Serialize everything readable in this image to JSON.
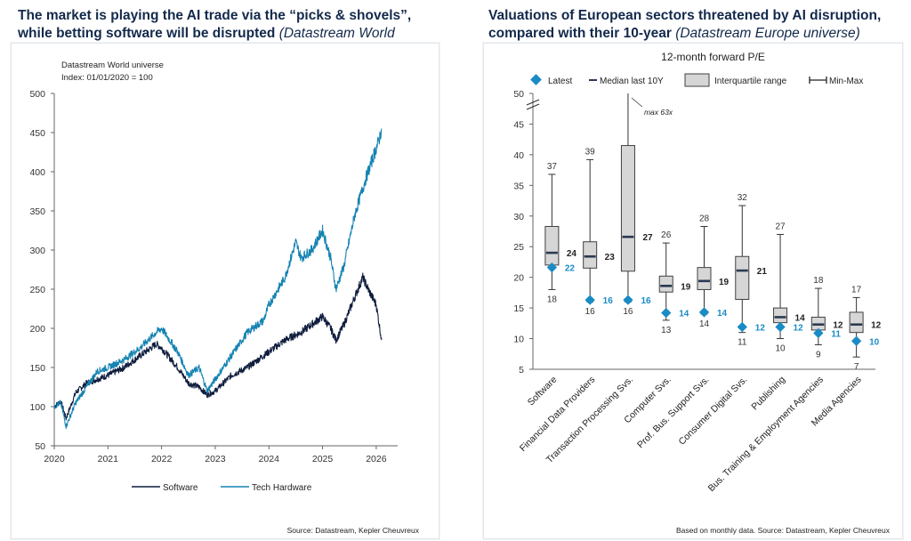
{
  "left": {
    "title_main": "The market is playing the AI trade via the “picks & shovels”, while betting software will be disrupted",
    "title_source": "(Datastream World  universe)",
    "note_line1": "Datastream World universe",
    "note_line2": "Index: 01/01/2020 = 100",
    "source": "Source: Datastream, Kepler Cheuvreux"
  },
  "right": {
    "title_main": "Valuations of European sectors threatened by AI disruption, compared with their 10-year",
    "title_source": "(Datastream Europe universe)",
    "subtitle": "12-month forward P/E",
    "max_note": "max 63x",
    "source": "Based on monthly data. Source: Datastream, Kepler Cheuvreux"
  },
  "colors": {
    "software": "#0f1d3d",
    "tech_hardware": "#1483b2",
    "latest": "#1a8bc4",
    "median": "#2b3a52",
    "box_fill": "#d6d6d6",
    "box_stroke": "#404040",
    "title": "#13294b"
  },
  "chart_data": [
    {
      "type": "line",
      "title": "",
      "xlabel": "",
      "ylabel": "",
      "x_ticks": [
        "2020",
        "2021",
        "2022",
        "2023",
        "2024",
        "2025",
        "2026"
      ],
      "ylim": [
        50,
        500
      ],
      "y_ticks": [
        50,
        100,
        150,
        200,
        250,
        300,
        350,
        400,
        450,
        500
      ],
      "legend_position": "bottom-center",
      "series": [
        {
          "name": "Software",
          "color_key": "software",
          "points": [
            [
              2020.0,
              100
            ],
            [
              2020.12,
              107
            ],
            [
              2020.22,
              85
            ],
            [
              2020.4,
              118
            ],
            [
              2020.6,
              130
            ],
            [
              2020.8,
              135
            ],
            [
              2021.0,
              140
            ],
            [
              2021.3,
              150
            ],
            [
              2021.6,
              165
            ],
            [
              2021.9,
              180
            ],
            [
              2022.0,
              175
            ],
            [
              2022.3,
              150
            ],
            [
              2022.5,
              130
            ],
            [
              2022.7,
              125
            ],
            [
              2022.85,
              115
            ],
            [
              2023.0,
              120
            ],
            [
              2023.3,
              140
            ],
            [
              2023.6,
              150
            ],
            [
              2023.9,
              165
            ],
            [
              2024.0,
              170
            ],
            [
              2024.3,
              185
            ],
            [
              2024.6,
              195
            ],
            [
              2024.9,
              210
            ],
            [
              2025.0,
              215
            ],
            [
              2025.15,
              200
            ],
            [
              2025.25,
              185
            ],
            [
              2025.4,
              205
            ],
            [
              2025.6,
              240
            ],
            [
              2025.75,
              265
            ],
            [
              2025.85,
              250
            ],
            [
              2026.0,
              230
            ],
            [
              2026.1,
              185
            ]
          ]
        },
        {
          "name": "Tech Hardware",
          "color_key": "tech_hardware",
          "points": [
            [
              2020.0,
              100
            ],
            [
              2020.12,
              105
            ],
            [
              2020.22,
              75
            ],
            [
              2020.4,
              105
            ],
            [
              2020.6,
              125
            ],
            [
              2020.8,
              145
            ],
            [
              2021.0,
              150
            ],
            [
              2021.3,
              160
            ],
            [
              2021.6,
              175
            ],
            [
              2021.9,
              195
            ],
            [
              2022.0,
              200
            ],
            [
              2022.3,
              170
            ],
            [
              2022.5,
              140
            ],
            [
              2022.7,
              150
            ],
            [
              2022.85,
              120
            ],
            [
              2023.0,
              135
            ],
            [
              2023.3,
              165
            ],
            [
              2023.6,
              195
            ],
            [
              2023.9,
              210
            ],
            [
              2024.0,
              230
            ],
            [
              2024.3,
              265
            ],
            [
              2024.5,
              310
            ],
            [
              2024.6,
              290
            ],
            [
              2024.8,
              300
            ],
            [
              2025.0,
              325
            ],
            [
              2025.15,
              290
            ],
            [
              2025.25,
              250
            ],
            [
              2025.4,
              280
            ],
            [
              2025.6,
              345
            ],
            [
              2025.8,
              390
            ],
            [
              2025.95,
              420
            ],
            [
              2026.05,
              440
            ],
            [
              2026.1,
              455
            ]
          ]
        }
      ]
    },
    {
      "type": "box",
      "title": "12-month forward P/E",
      "ylim": [
        5,
        50
      ],
      "y_ticks": [
        5,
        10,
        15,
        20,
        25,
        30,
        35,
        40,
        45,
        50
      ],
      "legend": [
        "Latest",
        "Median last 10Y",
        "Interquartile range",
        "Min-Max"
      ],
      "legend_position": "top",
      "categories": [
        "Software",
        "Financial Data Providers",
        "Transaction Processing Svs.",
        "Computer Svs.",
        "Prof. Bus. Support Svs.",
        "Consumer Digital Svs.",
        "Publishing",
        "Bus. Training & Employment Agencies",
        "Media Agencies"
      ],
      "min": [
        18,
        16,
        16,
        13,
        14,
        11,
        10,
        9,
        7
      ],
      "q1": [
        22,
        21.5,
        21,
        17.6,
        18,
        16.4,
        12.6,
        11.4,
        11
      ],
      "median": [
        24,
        23.4,
        26.6,
        18.6,
        19.4,
        21.1,
        13.5,
        12.3,
        12.3
      ],
      "q3": [
        28.3,
        25.8,
        41.5,
        20.2,
        21.6,
        23.4,
        15,
        13.5,
        14.3
      ],
      "max": [
        36.8,
        39.2,
        63,
        25.6,
        28.3,
        31.7,
        27,
        18.2,
        16.7
      ],
      "latest": [
        21.6,
        16.3,
        16.3,
        14.2,
        14.3,
        11.9,
        11.9,
        10.9,
        9.6
      ],
      "min_labels": [
        "18",
        "16",
        "16",
        "13",
        "14",
        "11",
        "10",
        "9",
        "7"
      ],
      "max_labels": [
        "37",
        "39",
        "",
        "26",
        "28",
        "32",
        "27",
        "18",
        "17"
      ],
      "median_labels": [
        "24",
        "23",
        "27",
        "19",
        "19",
        "21",
        "14",
        "12",
        "12"
      ],
      "latest_labels": [
        "22",
        "16",
        "16",
        "14",
        "14",
        "12",
        "12",
        "11",
        "10"
      ]
    }
  ]
}
